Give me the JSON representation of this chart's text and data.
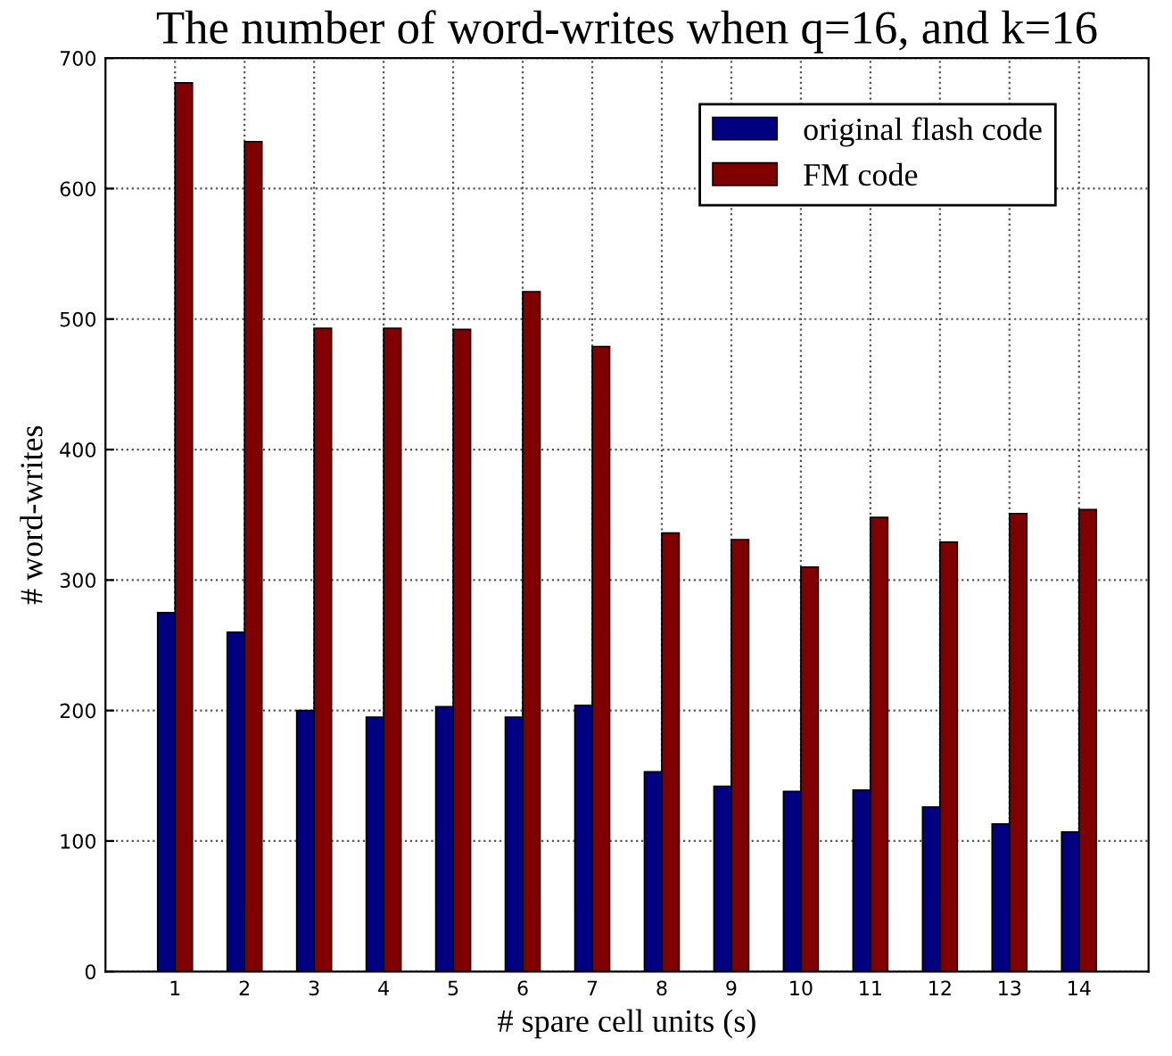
{
  "chart_data": {
    "type": "bar",
    "title": "The number of word-writes when q=16, and k=16",
    "xlabel": "# spare cell units (s)",
    "ylabel": "# word-writes",
    "categories": [
      "1",
      "2",
      "3",
      "4",
      "5",
      "6",
      "7",
      "8",
      "9",
      "10",
      "11",
      "12",
      "13",
      "14"
    ],
    "series": [
      {
        "name": "original flash code",
        "color": "#000080",
        "values": [
          275,
          260,
          200,
          195,
          203,
          195,
          204,
          153,
          142,
          138,
          139,
          126,
          113,
          107
        ]
      },
      {
        "name": "FM code",
        "color": "#800000",
        "values": [
          681,
          636,
          493,
          493,
          492,
          521,
          479,
          336,
          331,
          310,
          348,
          329,
          351,
          354
        ]
      }
    ],
    "ylim": [
      0,
      700
    ],
    "yticks": [
      0,
      100,
      200,
      300,
      400,
      500,
      600,
      700
    ],
    "grid": true,
    "legend": "top right"
  }
}
